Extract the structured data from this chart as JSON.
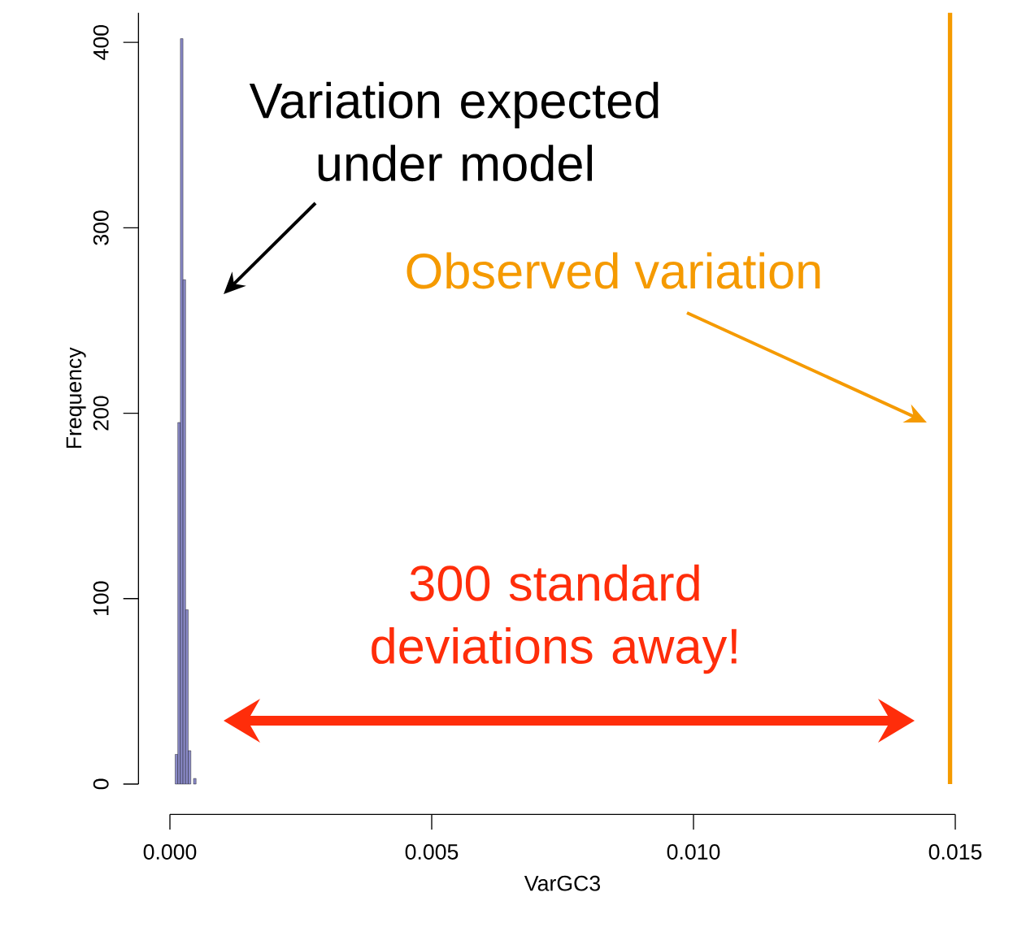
{
  "chart_data": {
    "type": "histogram",
    "xlabel": "VarGC3",
    "ylabel": "Frequency",
    "bins": [
      0.0001,
      0.00015,
      0.0002,
      0.00025,
      0.0003,
      0.00035,
      0.0004,
      0.00045,
      0.0005
    ],
    "values": [
      16,
      195,
      402,
      272,
      94,
      18,
      0,
      3
    ],
    "color": "#8a8ac8",
    "xlim": [
      0,
      0.015
    ],
    "ylim": [
      0,
      416
    ],
    "xticks": [
      {
        "value": 0,
        "label": "0.000"
      },
      {
        "value": 0.005,
        "label": "0.005"
      },
      {
        "value": 0.01,
        "label": "0.010"
      },
      {
        "value": 0.015,
        "label": "0.015"
      }
    ],
    "yticks": [
      0,
      100,
      200,
      300,
      400
    ],
    "ref_lines": [
      {
        "axis": "x",
        "value": 0.0149,
        "label": "Observed variation",
        "color": "#f59a00"
      }
    ],
    "annotations": [
      "Variation expected under model",
      "300 standard deviations away!"
    ]
  }
}
